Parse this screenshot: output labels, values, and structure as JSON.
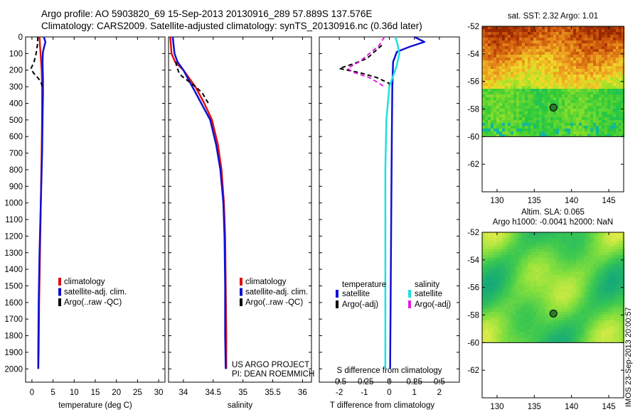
{
  "header": {
    "line1": "Argo profile: AO 5903820_69 15-Sep-2013 20130916_289 57.889S 137.576E",
    "line2": "Climatology: CARS2009. Satellite-adjusted climatology: synTS_20130916.nc (0.36d later)"
  },
  "colors": {
    "climatology": "#e01010",
    "satellite": "#1010d0",
    "argo": "#000000",
    "sal_satellite": "#20e0e0",
    "sal_argo": "#e020e0"
  },
  "chart_data": [
    {
      "type": "line",
      "id": "temperature",
      "xlabel": "temperature (deg C)",
      "ylabel": "",
      "xlim": [
        -1.5,
        31.5
      ],
      "ylim": [
        2080,
        0
      ],
      "xticks": [
        0,
        5,
        10,
        15,
        20,
        25,
        30
      ],
      "xtick_labels": [
        "0",
        "5",
        "10",
        "15",
        "20",
        "25",
        "30"
      ],
      "yticks": [
        0,
        100,
        200,
        300,
        400,
        500,
        600,
        700,
        800,
        900,
        1000,
        1100,
        1200,
        1300,
        1400,
        1500,
        1600,
        1700,
        1800,
        1900,
        2000
      ],
      "ytick_labels": [
        "0",
        "100",
        "200",
        "300",
        "400",
        "500",
        "600",
        "700",
        "800",
        "900",
        "1000",
        "1100",
        "1200",
        "1300",
        "1400",
        "1500",
        "1600",
        "1700",
        "1800",
        "1900",
        "2000"
      ],
      "legend": [
        "climatology",
        "satellite-adj. clim.",
        "Argo(..raw -QC)"
      ],
      "series": [
        {
          "name": "climatology",
          "x": [
            1.8,
            1.9,
            2.1,
            2.3,
            2.4,
            2.4,
            2.3,
            2.1,
            1.9,
            1.7,
            1.6,
            1.5
          ],
          "y": [
            0,
            50,
            120,
            200,
            300,
            500,
            700,
            1000,
            1300,
            1600,
            1900,
            2000
          ]
        },
        {
          "name": "satellite-adj. clim.",
          "x": [
            2.8,
            3.2,
            2.9,
            2.6,
            2.5,
            2.6,
            2.6,
            2.5,
            2.4,
            2.2,
            2.0,
            1.8,
            1.6,
            1.5,
            1.5
          ],
          "y": [
            0,
            30,
            60,
            90,
            150,
            250,
            350,
            500,
            700,
            900,
            1100,
            1300,
            1600,
            1900,
            2000
          ]
        },
        {
          "name": "Argo(..raw -QC)",
          "x": [
            1.4,
            1.3,
            1.0,
            0.5,
            -0.2,
            0.3,
            1.2,
            2.0,
            2.3,
            2.4
          ],
          "y": [
            0,
            50,
            100,
            150,
            190,
            215,
            240,
            265,
            285,
            300
          ]
        }
      ]
    },
    {
      "type": "line",
      "id": "salinity",
      "xlabel": "salinity",
      "xlim": [
        33.75,
        36.15
      ],
      "ylim": [
        2080,
        0
      ],
      "xticks": [
        34,
        34.5,
        35,
        35.5,
        36
      ],
      "xtick_labels": [
        "34",
        "34.5",
        "35",
        "35.5",
        "36"
      ],
      "legend": [
        "climatology",
        "satellite-adj. clim.",
        "Argo(..raw -QC)"
      ],
      "credits": [
        "US ARGO PROJECT",
        "PI: DEAN ROEMMICH"
      ],
      "series": [
        {
          "name": "climatology",
          "x": [
            33.78,
            33.8,
            33.86,
            34.0,
            34.2,
            34.35,
            34.48,
            34.58,
            34.64,
            34.68,
            34.7,
            34.71,
            34.72,
            34.72
          ],
          "y": [
            0,
            100,
            150,
            200,
            300,
            400,
            500,
            650,
            800,
            1000,
            1200,
            1500,
            1800,
            2000
          ]
        },
        {
          "name": "satellite-adj. clim.",
          "x": [
            33.82,
            33.85,
            33.9,
            34.0,
            34.15,
            34.3,
            34.45,
            34.55,
            34.62,
            34.67,
            34.69,
            34.7,
            34.7,
            34.71
          ],
          "y": [
            0,
            100,
            150,
            200,
            300,
            400,
            500,
            650,
            800,
            1000,
            1200,
            1500,
            1800,
            2000
          ]
        },
        {
          "name": "Argo(..raw -QC)",
          "x": [
            33.87,
            33.89,
            33.92,
            33.97,
            34.06,
            34.15,
            34.25,
            34.32,
            34.37,
            34.42
          ],
          "y": [
            150,
            180,
            210,
            235,
            260,
            285,
            315,
            340,
            370,
            400
          ]
        }
      ]
    },
    {
      "type": "line",
      "id": "differences",
      "xlabel": "T difference from climatology",
      "xlabel_top": "S difference from climatology",
      "xlim": [
        -2.8,
        2.8
      ],
      "ylim": [
        2080,
        0
      ],
      "xticks": [
        -2,
        -1,
        0,
        1,
        2
      ],
      "xtick_labels": [
        "-2",
        "-1",
        "0",
        "1",
        "2"
      ],
      "sticks": [
        -0.5,
        -0.25,
        0,
        0.25,
        0.5
      ],
      "stick_labels": [
        "-0.5",
        "-0.25",
        "0",
        "0.25",
        "0.5"
      ],
      "slim": [
        -0.7,
        0.7
      ],
      "legend_headers": [
        "temperature",
        "salinity"
      ],
      "legend": [
        "satellite",
        "Argo(-adj)",
        "satellite",
        "Argo(-adj)"
      ],
      "series": [
        {
          "name": "satellite",
          "group": "temperature",
          "units": "T",
          "x": [
            1.0,
            1.4,
            0.8,
            0.3,
            0.15,
            0.12,
            0.1,
            0.08,
            0.05,
            0.03
          ],
          "y": [
            0,
            30,
            60,
            90,
            150,
            300,
            600,
            1000,
            1600,
            2000
          ]
        },
        {
          "name": "Argo(-adj)",
          "group": "temperature",
          "units": "T",
          "x": [
            -0.3,
            -0.6,
            -0.9,
            -1.4,
            -2.0,
            -1.2,
            -0.5,
            0,
            0
          ],
          "y": [
            50,
            90,
            130,
            160,
            190,
            215,
            245,
            280,
            300
          ]
        },
        {
          "name": "satellite",
          "group": "salinity",
          "units": "S",
          "x": [
            0.06,
            0.08,
            0.1,
            0.07,
            0.0,
            -0.03,
            -0.04,
            -0.04,
            -0.04
          ],
          "y": [
            0,
            40,
            100,
            180,
            300,
            500,
            800,
            1300,
            2000
          ]
        },
        {
          "name": "Argo(-adj)",
          "group": "salinity",
          "units": "S",
          "x": [
            -0.05,
            -0.1,
            -0.2,
            -0.3,
            -0.42,
            -0.35,
            -0.2,
            -0.1,
            -0.05
          ],
          "y": [
            0,
            50,
            100,
            150,
            190,
            215,
            245,
            280,
            300
          ]
        }
      ]
    },
    {
      "type": "heatmap",
      "id": "sst_map",
      "title": "sat. SST: 2.32 Argo: 1.01",
      "xlim": [
        128,
        147
      ],
      "ylim": [
        -64,
        -52
      ],
      "xticks": [
        130,
        135,
        140,
        145
      ],
      "yticks": [
        -52,
        -54,
        -56,
        -58,
        -60,
        -62
      ],
      "xtick_labels": [
        "130",
        "135",
        "140",
        "145"
      ],
      "ytick_labels": [
        "-52",
        "-54",
        "-56",
        "-58",
        "-60",
        "-62"
      ],
      "data_lat_min": -60,
      "argo_position": {
        "lon": 137.576,
        "lat": -57.889
      }
    },
    {
      "type": "heatmap",
      "id": "sla_map",
      "title": "Altim. SLA: 0.065",
      "subtitle": "Argo h1000: -0.0041 h2000: NaN",
      "xlim": [
        128,
        147
      ],
      "ylim": [
        -64,
        -52
      ],
      "xticks": [
        130,
        135,
        140,
        145
      ],
      "yticks": [
        -52,
        -54,
        -56,
        -58,
        -60,
        -62
      ],
      "xtick_labels": [
        "130",
        "135",
        "140",
        "145"
      ],
      "ytick_labels": [
        "-52",
        "-54",
        "-56",
        "-58",
        "-60",
        "-62"
      ],
      "data_lat_min": -60,
      "argo_position": {
        "lon": 137.576,
        "lat": -57.889
      }
    }
  ],
  "footer": {
    "stamp": "IMOS 23-Sep-2013 20:00:57"
  }
}
